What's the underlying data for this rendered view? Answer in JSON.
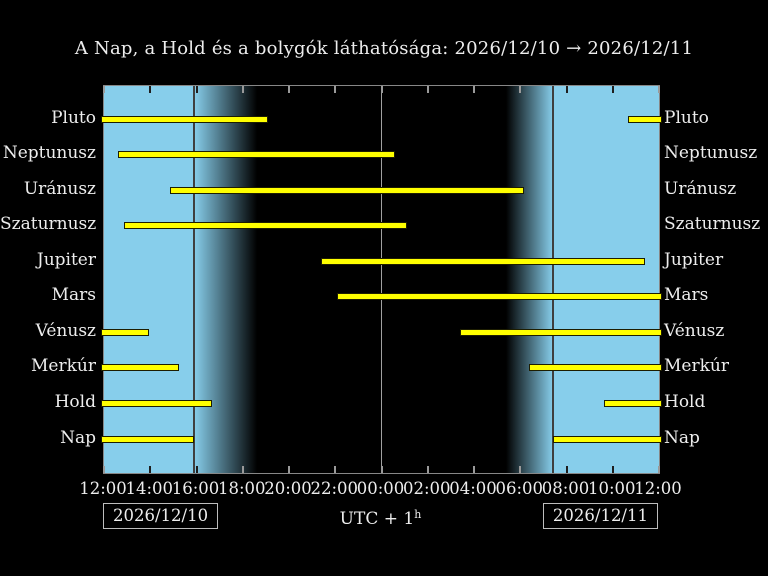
{
  "title": "A Nap, a Hold és a bolygók láthatósága: 2026/12/10 → 2026/12/11",
  "footer": {
    "date_left": "2026/12/10",
    "date_right": "2026/12/11",
    "utc_label": "UTC + 1",
    "utc_sup": "h"
  },
  "colors": {
    "background": "#000000",
    "day_sky": "#87ceeb",
    "night_sky": "#000000",
    "bar_fill": "#ffff00",
    "bar_border": "#1d1d00",
    "frame": "#878787",
    "midnight_line": "#a0a0a0",
    "twilight_line": "#3f3f3f",
    "tick_on_day": "#1e1e1e",
    "tick_on_night": "#9a9a9a",
    "text": "#ededed"
  },
  "chart_data": {
    "type": "bar",
    "subtype": "visibility-timeline-gantt",
    "title": "A Nap, a Hold és a bolygók láthatósága: 2026/12/10 → 2026/12/11",
    "x_axis": {
      "start_label": "12:00",
      "end_label": "12:00",
      "span_hours": 24,
      "tick_step_hours": 2,
      "tick_labels": [
        "12:00",
        "14:00",
        "16:00",
        "18:00",
        "20:00",
        "22:00",
        "00:00",
        "02:00",
        "04:00",
        "06:00",
        "08:00",
        "10:00",
        "12:00"
      ],
      "note": "hours measured from 12:00 on 2026/12/10 to 12:00 on 2026/12/11, UTC+1"
    },
    "rows": [
      {
        "label": "Pluto",
        "segments": [
          [
            0,
            7.09
          ],
          [
            22.66,
            24
          ]
        ]
      },
      {
        "label": "Neptunusz",
        "segments": [
          [
            0.61,
            12.58
          ]
        ]
      },
      {
        "label": "Uránusz",
        "segments": [
          [
            2.85,
            18.16
          ]
        ]
      },
      {
        "label": "Szaturnusz",
        "segments": [
          [
            0.86,
            13.1
          ]
        ]
      },
      {
        "label": "Jupiter",
        "segments": [
          [
            9.38,
            23.39
          ]
        ]
      },
      {
        "label": "Mars",
        "segments": [
          [
            10.07,
            24
          ]
        ]
      },
      {
        "label": "Vénusz",
        "segments": [
          [
            0,
            1.95
          ],
          [
            15.39,
            24
          ]
        ]
      },
      {
        "label": "Merkúr",
        "segments": [
          [
            0,
            3.24
          ],
          [
            18.38,
            24
          ]
        ]
      },
      {
        "label": "Hold",
        "segments": [
          [
            0,
            4.67
          ],
          [
            21.62,
            24
          ]
        ]
      },
      {
        "label": "Nap",
        "segments": [
          [
            0,
            3.89
          ],
          [
            19.42,
            24
          ]
        ]
      }
    ],
    "sun_events": {
      "sunset_hour": 3.89,
      "midnight_hour": 12.0,
      "sunrise_hour": 19.42
    },
    "twilight": {
      "dusk_start_hour": 3.89,
      "dusk_end_hour": 6.6,
      "dawn_start_hour": 17.38,
      "dawn_end_hour": 19.42
    },
    "legend_position": "none",
    "grid": "off"
  }
}
